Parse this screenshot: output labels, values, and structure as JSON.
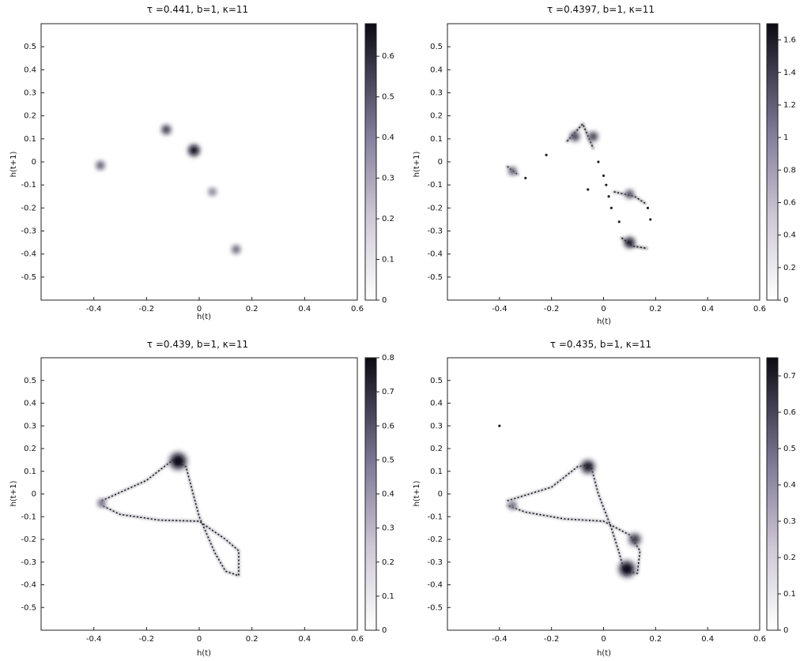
{
  "chart_data": [
    {
      "type": "heatmap",
      "title": "τ =0.441, b=1, κ=11",
      "xlabel": "h(t)",
      "ylabel": "h(t+1)",
      "xlim": [
        -0.6,
        0.6
      ],
      "ylim": [
        -0.6,
        0.6
      ],
      "xticks": [
        "-0.4",
        "-0.2",
        "0",
        "0.2",
        "0.4",
        "0.6"
      ],
      "yticks": [
        "0.5",
        "0.4",
        "0.3",
        "0.2",
        "0.1",
        "0",
        "-0.1",
        "-0.2",
        "-0.3",
        "-0.4",
        "-0.5"
      ],
      "colorbar": {
        "range": [
          0,
          0.68
        ],
        "ticks": [
          "0.6",
          "0.5",
          "0.4",
          "0.3",
          "0.2",
          "0.1",
          "0"
        ]
      },
      "blobs": [
        {
          "x": -0.02,
          "y": 0.05,
          "r": 0.017,
          "v": 0.68
        },
        {
          "x": -0.125,
          "y": 0.14,
          "r": 0.014,
          "v": 0.55
        },
        {
          "x": -0.375,
          "y": -0.015,
          "r": 0.013,
          "v": 0.45
        },
        {
          "x": 0.05,
          "y": -0.13,
          "r": 0.01,
          "v": 0.35
        },
        {
          "x": 0.14,
          "y": -0.38,
          "r": 0.013,
          "v": 0.42
        }
      ],
      "curves": [],
      "dots": []
    },
    {
      "type": "heatmap",
      "title": "τ =0.4397, b=1, κ=11",
      "xlabel": "h(t)",
      "ylabel": "h(t+1)",
      "xlim": [
        -0.6,
        0.6
      ],
      "ylim": [
        -0.6,
        0.6
      ],
      "xticks": [
        "-0.4",
        "-0.2",
        "0",
        "0.2",
        "0.4",
        "0.6"
      ],
      "yticks": [
        "0.5",
        "0.4",
        "0.3",
        "0.2",
        "0.1",
        "0",
        "-0.1",
        "-0.2",
        "-0.3",
        "-0.4",
        "-0.5"
      ],
      "colorbar": {
        "range": [
          0,
          1.7
        ],
        "ticks": [
          "1.6",
          "1.4",
          "1.2",
          "1",
          "0.8",
          "0.6",
          "0.4",
          "0.2",
          "0"
        ]
      },
      "blobs": [
        {
          "x": -0.11,
          "y": 0.11,
          "r": 0.014,
          "v": 1.4
        },
        {
          "x": -0.04,
          "y": 0.11,
          "r": 0.014,
          "v": 1.4
        },
        {
          "x": 0.1,
          "y": -0.35,
          "r": 0.016,
          "v": 1.7
        },
        {
          "x": 0.1,
          "y": -0.14,
          "r": 0.013,
          "v": 1.3
        },
        {
          "x": -0.35,
          "y": -0.04,
          "r": 0.011,
          "v": 1.2
        }
      ],
      "curves": [
        {
          "points": [
            [
              -0.14,
              0.09
            ],
            [
              -0.08,
              0.165
            ],
            [
              -0.04,
              0.06
            ]
          ],
          "v": 1.5
        },
        {
          "points": [
            [
              -0.37,
              -0.02
            ],
            [
              -0.33,
              -0.055
            ]
          ],
          "v": 1.3
        },
        {
          "points": [
            [
              0.04,
              -0.13
            ],
            [
              0.12,
              -0.15
            ],
            [
              0.16,
              -0.18
            ]
          ],
          "v": 1.4
        },
        {
          "points": [
            [
              0.07,
              -0.33
            ],
            [
              0.11,
              -0.365
            ],
            [
              0.165,
              -0.375
            ]
          ],
          "v": 1.7
        }
      ],
      "dots": [
        [
          -0.22,
          0.03
        ],
        [
          -0.3,
          -0.07
        ],
        [
          -0.02,
          0.0
        ],
        [
          0.0,
          -0.06
        ],
        [
          0.01,
          -0.1
        ],
        [
          -0.06,
          -0.12
        ],
        [
          0.03,
          -0.2
        ],
        [
          0.06,
          -0.26
        ],
        [
          0.18,
          -0.25
        ],
        [
          0.17,
          -0.2
        ],
        [
          0.02,
          -0.15
        ]
      ]
    },
    {
      "type": "heatmap",
      "title": "τ =0.439, b=1, κ=11",
      "xlabel": "h(t)",
      "ylabel": "h(t+1)",
      "xlim": [
        -0.6,
        0.6
      ],
      "ylim": [
        -0.6,
        0.6
      ],
      "xticks": [
        "-0.4",
        "-0.2",
        "0",
        "0.2",
        "0.4",
        "0.6"
      ],
      "yticks": [
        "0.5",
        "0.4",
        "0.3",
        "0.2",
        "0.1",
        "0",
        "-0.1",
        "-0.2",
        "-0.3",
        "-0.4",
        "-0.5"
      ],
      "colorbar": {
        "range": [
          0,
          0.8
        ],
        "ticks": [
          "0.8",
          "0.7",
          "0.6",
          "0.5",
          "0.4",
          "0.3",
          "0.2",
          "0.1",
          "0"
        ]
      },
      "blobs": [
        {
          "x": -0.08,
          "y": 0.145,
          "r": 0.025,
          "v": 0.8
        },
        {
          "x": -0.37,
          "y": -0.04,
          "r": 0.012,
          "v": 0.5
        }
      ],
      "curves": [
        {
          "points": [
            [
              -0.37,
              -0.03
            ],
            [
              -0.2,
              0.06
            ],
            [
              -0.1,
              0.15
            ],
            [
              -0.05,
              0.12
            ],
            [
              0.0,
              -0.1
            ],
            [
              0.06,
              -0.26
            ],
            [
              0.1,
              -0.34
            ],
            [
              0.15,
              -0.36
            ],
            [
              0.15,
              -0.25
            ],
            [
              0.1,
              -0.2
            ],
            [
              0.0,
              -0.12
            ],
            [
              -0.15,
              -0.115
            ],
            [
              -0.3,
              -0.09
            ],
            [
              -0.37,
              -0.05
            ]
          ],
          "v": 0.5
        }
      ],
      "dots": []
    },
    {
      "type": "heatmap",
      "title": "τ =0.435, b=1, κ=11",
      "xlabel": "h(t)",
      "ylabel": "h(t+1)",
      "xlim": [
        -0.6,
        0.6
      ],
      "ylim": [
        -0.6,
        0.6
      ],
      "xticks": [
        "-0.4",
        "-0.2",
        "0",
        "0.2",
        "0.4",
        "0.6"
      ],
      "yticks": [
        "0.5",
        "0.4",
        "0.3",
        "0.2",
        "0.1",
        "0",
        "-0.1",
        "-0.2",
        "-0.3",
        "-0.4",
        "-0.5"
      ],
      "colorbar": {
        "range": [
          0,
          0.75
        ],
        "ticks": [
          "0.7",
          "0.6",
          "0.5",
          "0.4",
          "0.3",
          "0.2",
          "0.1",
          "0"
        ]
      },
      "blobs": [
        {
          "x": -0.06,
          "y": 0.12,
          "r": 0.02,
          "v": 0.7
        },
        {
          "x": 0.09,
          "y": -0.33,
          "r": 0.024,
          "v": 0.75
        },
        {
          "x": 0.12,
          "y": -0.2,
          "r": 0.018,
          "v": 0.6
        },
        {
          "x": -0.35,
          "y": -0.05,
          "r": 0.012,
          "v": 0.5
        }
      ],
      "curves": [
        {
          "points": [
            [
              -0.37,
              -0.03
            ],
            [
              -0.2,
              0.03
            ],
            [
              -0.1,
              0.12
            ],
            [
              -0.05,
              0.13
            ],
            [
              -0.02,
              0.0
            ],
            [
              0.03,
              -0.15
            ],
            [
              0.06,
              -0.26
            ],
            [
              0.08,
              -0.34
            ],
            [
              0.13,
              -0.35
            ],
            [
              0.14,
              -0.25
            ],
            [
              0.1,
              -0.18
            ],
            [
              0.0,
              -0.12
            ],
            [
              -0.15,
              -0.11
            ],
            [
              -0.3,
              -0.08
            ],
            [
              -0.37,
              -0.05
            ]
          ],
          "v": 0.45
        }
      ],
      "dots": [
        [
          -0.4,
          0.3
        ]
      ]
    }
  ]
}
